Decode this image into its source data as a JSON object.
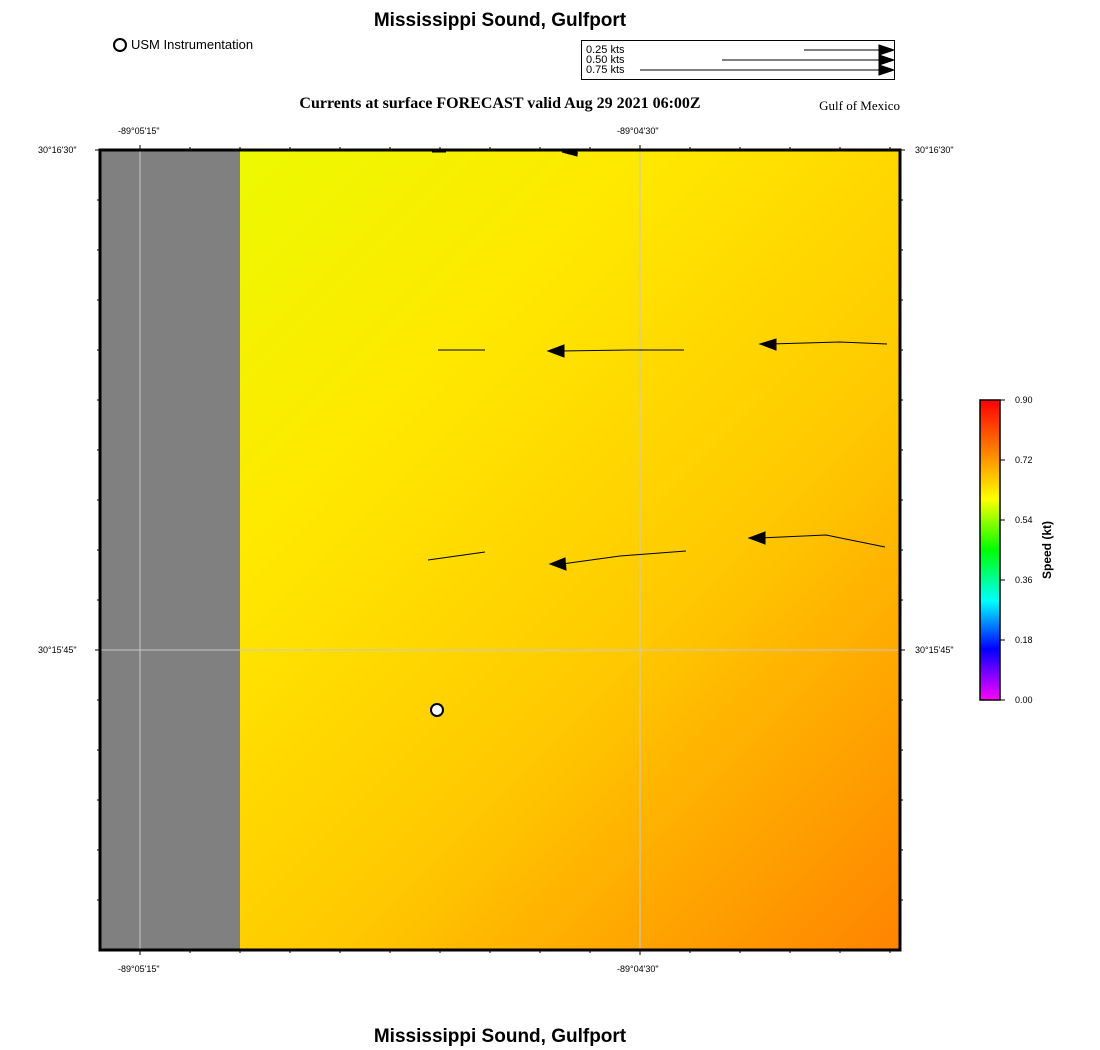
{
  "header": {
    "title": "Mississippi Sound, Gulfport",
    "subtitle": "Currents at surface FORECAST  valid Aug 29 2021 06:00Z",
    "region": "Gulf of Mexico",
    "legend_label": "USM Instrumentation"
  },
  "footer": {
    "title": "Mississippi Sound, Gulfport"
  },
  "scale": {
    "items": [
      {
        "label": "0.25 kts",
        "speed": 0.25
      },
      {
        "label": "0.50 kts",
        "speed": 0.5
      },
      {
        "label": "0.75 kts",
        "speed": 0.75
      }
    ]
  },
  "axes": {
    "lon_left": "-89°05'15\"",
    "lon_right": "-89°04'30\"",
    "lat_top": "30°16'30\"",
    "lat_mid": "30°15'45\""
  },
  "colorbar": {
    "title": "Speed (kt)",
    "ticks": [
      "0.90",
      "0.72",
      "0.54",
      "0.36",
      "0.18",
      "0.00"
    ],
    "colors": [
      "#ff0000",
      "#ff8000",
      "#ffff00",
      "#00ff00",
      "#00ffff",
      "#0000ff",
      "#ff00ff"
    ]
  },
  "map": {
    "land_color": "#808080",
    "water_colors": [
      "#f0ff00",
      "#ffcc00",
      "#ff8800"
    ],
    "vectors": [
      {
        "row": 1,
        "label": "arrow"
      }
    ]
  }
}
